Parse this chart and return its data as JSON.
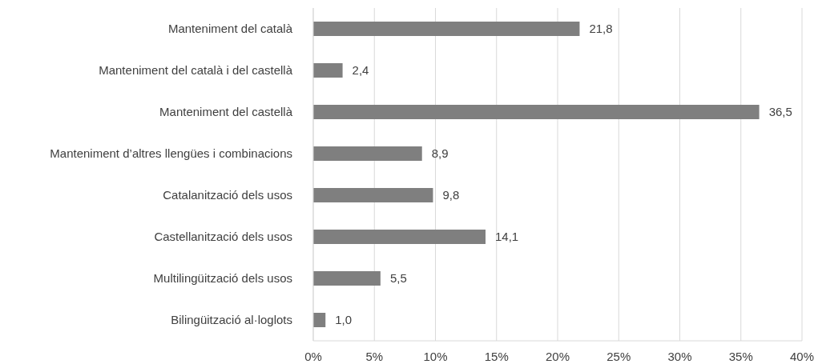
{
  "chart_data": {
    "type": "bar",
    "orientation": "horizontal",
    "categories": [
      "Manteniment del català",
      "Manteniment del català i del castellà",
      "Manteniment del castellà",
      "Manteniment d’altres llengües i combinacions",
      "Catalanització dels usos",
      "Castellanització dels usos",
      "Multilingüització dels usos",
      "Bilingüització al·loglots"
    ],
    "values": [
      21.8,
      2.4,
      36.5,
      8.9,
      9.8,
      14.1,
      5.5,
      1.0
    ],
    "value_labels": [
      "21,8",
      "2,4",
      "36,5",
      "8,9",
      "9,8",
      "14,1",
      "5,5",
      "1,0"
    ],
    "color": "#7f7f7f",
    "xlim": [
      0,
      40
    ],
    "xticks": [
      {
        "value": 0,
        "label": "0%"
      },
      {
        "value": 5,
        "label": "5%"
      },
      {
        "value": 10,
        "label": "10%"
      },
      {
        "value": 15,
        "label": "15%"
      },
      {
        "value": 20,
        "label": "20%"
      },
      {
        "value": 25,
        "label": "25%"
      },
      {
        "value": 30,
        "label": "30%"
      },
      {
        "value": 35,
        "label": "35%"
      },
      {
        "value": 40,
        "label": "40%"
      }
    ],
    "grid": "x"
  }
}
